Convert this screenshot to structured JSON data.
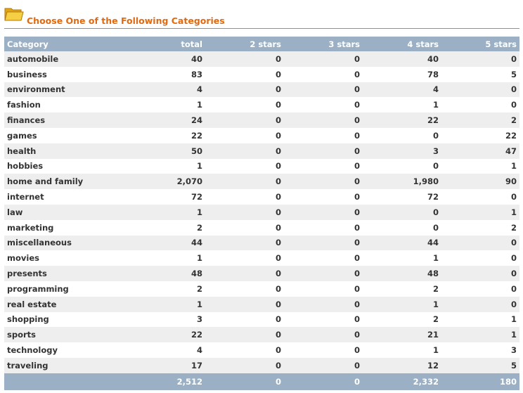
{
  "page": {
    "title": "Choose One of the Following Categories"
  },
  "table": {
    "headers": [
      "Category",
      "total",
      "2 stars",
      "3 stars",
      "4 stars",
      "5 stars"
    ],
    "rows": [
      [
        "automobile",
        "40",
        "0",
        "0",
        "40",
        "0"
      ],
      [
        "business",
        "83",
        "0",
        "0",
        "78",
        "5"
      ],
      [
        "environment",
        "4",
        "0",
        "0",
        "4",
        "0"
      ],
      [
        "fashion",
        "1",
        "0",
        "0",
        "1",
        "0"
      ],
      [
        "finances",
        "24",
        "0",
        "0",
        "22",
        "2"
      ],
      [
        "games",
        "22",
        "0",
        "0",
        "0",
        "22"
      ],
      [
        "health",
        "50",
        "0",
        "0",
        "3",
        "47"
      ],
      [
        "hobbies",
        "1",
        "0",
        "0",
        "0",
        "1"
      ],
      [
        "home and family",
        "2,070",
        "0",
        "0",
        "1,980",
        "90"
      ],
      [
        "internet",
        "72",
        "0",
        "0",
        "72",
        "0"
      ],
      [
        "law",
        "1",
        "0",
        "0",
        "0",
        "1"
      ],
      [
        "marketing",
        "2",
        "0",
        "0",
        "0",
        "2"
      ],
      [
        "miscellaneous",
        "44",
        "0",
        "0",
        "44",
        "0"
      ],
      [
        "movies",
        "1",
        "0",
        "0",
        "1",
        "0"
      ],
      [
        "presents",
        "48",
        "0",
        "0",
        "48",
        "0"
      ],
      [
        "programming",
        "2",
        "0",
        "0",
        "2",
        "0"
      ],
      [
        "real estate",
        "1",
        "0",
        "0",
        "1",
        "0"
      ],
      [
        "shopping",
        "3",
        "0",
        "0",
        "2",
        "1"
      ],
      [
        "sports",
        "22",
        "0",
        "0",
        "21",
        "1"
      ],
      [
        "technology",
        "4",
        "0",
        "0",
        "1",
        "3"
      ],
      [
        "traveling",
        "17",
        "0",
        "0",
        "12",
        "5"
      ]
    ],
    "footer": [
      "",
      "2,512",
      "0",
      "0",
      "2,332",
      "180"
    ]
  },
  "colors": {
    "accent": "#e06a12",
    "header_bg": "#9bb0c4",
    "stripe": "#eeeeee",
    "folder": "#f2c12e"
  },
  "icons": {
    "folder": "folder-icon"
  }
}
